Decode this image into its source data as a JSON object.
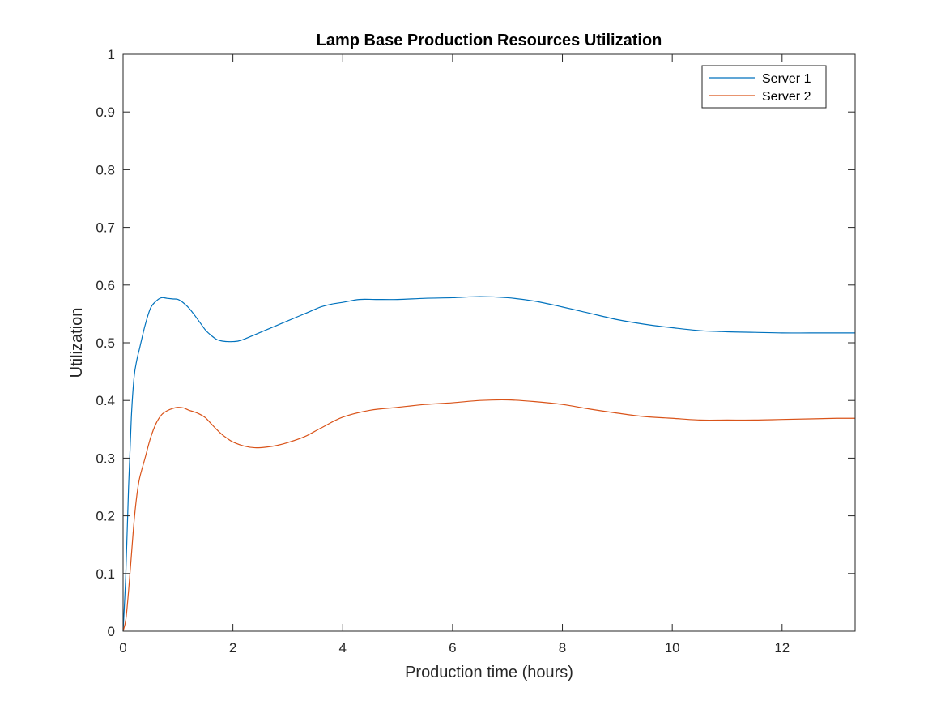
{
  "chart_data": {
    "type": "line",
    "title": "Lamp Base Production Resources Utilization",
    "xlabel": "Production time (hours)",
    "ylabel": "Utilization",
    "xlim": [
      0,
      13.33
    ],
    "ylim": [
      0,
      1
    ],
    "xticks": [
      0,
      2,
      4,
      6,
      8,
      10,
      12
    ],
    "xtick_labels": [
      "0",
      "2",
      "4",
      "6",
      "8",
      "10",
      "12"
    ],
    "yticks": [
      0,
      0.1,
      0.2,
      0.3,
      0.4,
      0.5,
      0.6,
      0.7,
      0.8,
      0.9,
      1
    ],
    "ytick_labels": [
      "0",
      "0.1",
      "0.2",
      "0.3",
      "0.4",
      "0.5",
      "0.6",
      "0.7",
      "0.8",
      "0.9",
      "1"
    ],
    "grid": false,
    "legend_position": "top-right",
    "series": [
      {
        "name": "Server 1",
        "color": "#0072BD",
        "x": [
          0,
          0.05,
          0.1,
          0.15,
          0.2,
          0.25,
          0.3,
          0.4,
          0.5,
          0.6,
          0.7,
          0.8,
          0.9,
          1.0,
          1.1,
          1.2,
          1.3,
          1.4,
          1.5,
          1.6,
          1.7,
          1.8,
          1.9,
          2.0,
          2.1,
          2.2,
          2.4,
          2.6,
          2.8,
          3.0,
          3.2,
          3.4,
          3.6,
          3.8,
          4.0,
          4.3,
          4.6,
          5.0,
          5.5,
          6.0,
          6.5,
          7.0,
          7.5,
          8.0,
          8.5,
          9.0,
          9.5,
          10.0,
          10.5,
          11.0,
          11.5,
          12.0,
          12.5,
          13.0,
          13.33
        ],
        "y": [
          0,
          0.1,
          0.25,
          0.37,
          0.44,
          0.47,
          0.49,
          0.53,
          0.56,
          0.572,
          0.578,
          0.577,
          0.576,
          0.575,
          0.569,
          0.56,
          0.548,
          0.535,
          0.522,
          0.513,
          0.506,
          0.503,
          0.502,
          0.502,
          0.503,
          0.506,
          0.514,
          0.522,
          0.53,
          0.538,
          0.546,
          0.554,
          0.562,
          0.567,
          0.57,
          0.575,
          0.575,
          0.575,
          0.577,
          0.578,
          0.58,
          0.578,
          0.572,
          0.562,
          0.551,
          0.54,
          0.532,
          0.526,
          0.521,
          0.519,
          0.518,
          0.517,
          0.517,
          0.517,
          0.517
        ]
      },
      {
        "name": "Server 2",
        "color": "#D95319",
        "x": [
          0,
          0.05,
          0.1,
          0.15,
          0.2,
          0.25,
          0.3,
          0.4,
          0.5,
          0.6,
          0.7,
          0.8,
          0.9,
          1.0,
          1.1,
          1.2,
          1.3,
          1.4,
          1.5,
          1.6,
          1.7,
          1.8,
          1.9,
          2.0,
          2.2,
          2.4,
          2.6,
          2.8,
          3.0,
          3.3,
          3.6,
          4.0,
          4.5,
          5.0,
          5.5,
          6.0,
          6.5,
          7.0,
          7.5,
          8.0,
          8.5,
          9.0,
          9.5,
          10.0,
          10.5,
          11.0,
          11.5,
          12.0,
          12.5,
          13.0,
          13.33
        ],
        "y": [
          0,
          0.02,
          0.07,
          0.13,
          0.19,
          0.235,
          0.265,
          0.3,
          0.335,
          0.36,
          0.375,
          0.382,
          0.386,
          0.388,
          0.387,
          0.383,
          0.38,
          0.376,
          0.37,
          0.36,
          0.35,
          0.341,
          0.334,
          0.328,
          0.321,
          0.318,
          0.319,
          0.322,
          0.327,
          0.337,
          0.352,
          0.371,
          0.383,
          0.388,
          0.393,
          0.396,
          0.4,
          0.401,
          0.398,
          0.393,
          0.385,
          0.378,
          0.372,
          0.369,
          0.366,
          0.366,
          0.366,
          0.367,
          0.368,
          0.369,
          0.369
        ]
      }
    ]
  }
}
